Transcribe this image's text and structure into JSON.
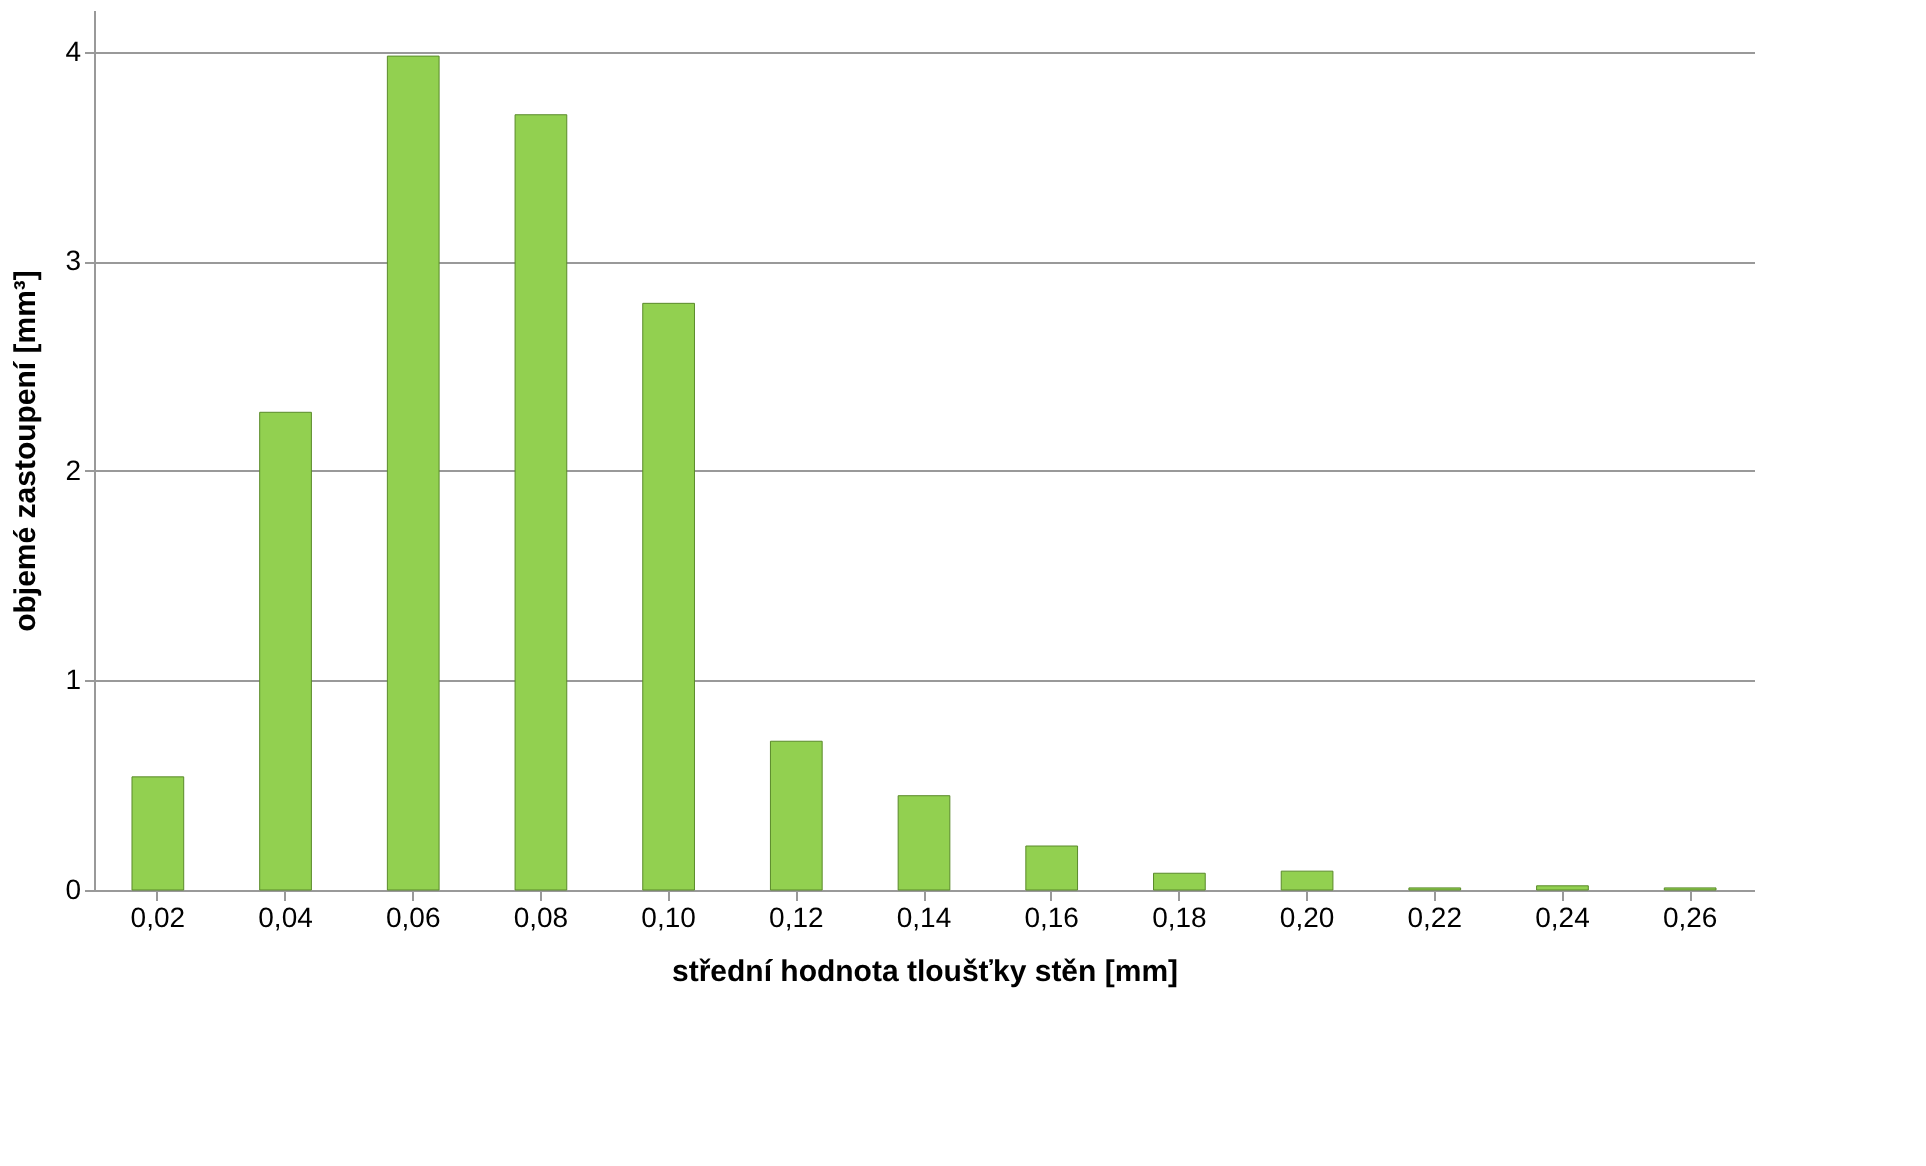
{
  "chart_data": {
    "type": "bar",
    "categories": [
      "0,02",
      "0,04",
      "0,06",
      "0,08",
      "0,10",
      "0,12",
      "0,14",
      "0,16",
      "0,18",
      "0,20",
      "0,22",
      "0,24",
      "0,26"
    ],
    "values": [
      0.54,
      2.28,
      3.98,
      3.7,
      2.8,
      0.71,
      0.45,
      0.21,
      0.08,
      0.09,
      0.01,
      0.02,
      0.01
    ],
    "color": "#92d050",
    "xlabel": "střední hodnota tloušťky stěn [mm]",
    "ylabel": "objemé zastoupení [mm³]",
    "ylim": [
      0,
      4.2
    ],
    "yticks": [
      0,
      1,
      2,
      3,
      4
    ],
    "grid": "y"
  }
}
